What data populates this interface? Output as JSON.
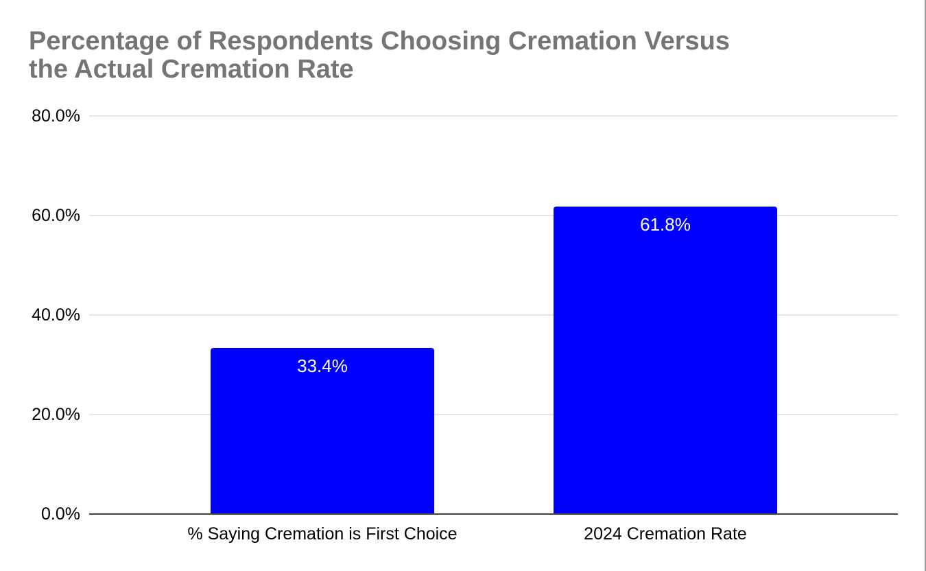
{
  "title": {
    "line1": "Percentage of Respondents Choosing Cremation Versus",
    "line2": "the Actual Cremation Rate"
  },
  "chart_data": {
    "type": "bar",
    "title": "Percentage of Respondents Choosing Cremation Versus the Actual Cremation Rate",
    "categories": [
      "% Saying Cremation is First Choice",
      "2024 Cremation Rate"
    ],
    "values": [
      33.4,
      61.8
    ],
    "value_labels": [
      "33.4%",
      "61.8%"
    ],
    "ylim": [
      0,
      80
    ],
    "ytick_values": [
      80,
      60,
      40,
      20,
      0
    ],
    "ytick_labels": [
      "80.0%",
      "60.0%",
      "40.0%",
      "20.0%",
      "0.0%"
    ],
    "bar_color": "#0000ff",
    "value_label_color": "#ffffff",
    "grid": true,
    "legend": "none"
  },
  "colors": {
    "title_text": "#757575",
    "gridline": "#e6e6e6",
    "axis_line": "#424242",
    "axis_text": "#000000",
    "page_border": "#9a9a9a",
    "background": "#ffffff"
  }
}
